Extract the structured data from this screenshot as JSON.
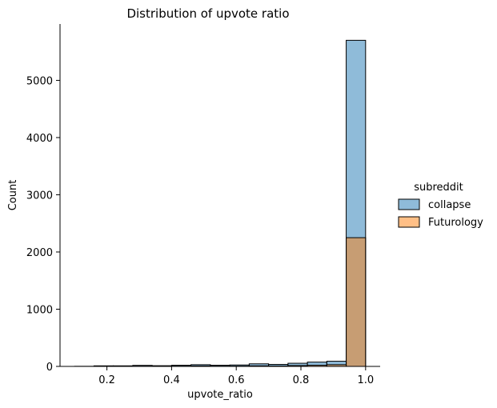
{
  "chart_data": {
    "type": "bar",
    "title": "Distribution of upvote ratio",
    "xlabel": "upvote_ratio",
    "ylabel": "Count",
    "xlim": [
      0.055,
      1.045
    ],
    "ylim": [
      0,
      5985
    ],
    "xticks": [
      0.2,
      0.4,
      0.6,
      0.8,
      1.0
    ],
    "xtick_labels": [
      "0.2",
      "0.4",
      "0.6",
      "0.8",
      "1.0"
    ],
    "yticks": [
      0,
      1000,
      2000,
      3000,
      4000,
      5000
    ],
    "ytick_labels": [
      "0",
      "1000",
      "2000",
      "3000",
      "4000",
      "5000"
    ],
    "bin_edges": [
      0.1,
      0.16,
      0.22,
      0.28,
      0.34,
      0.4,
      0.46,
      0.52,
      0.58,
      0.64,
      0.7,
      0.76,
      0.82,
      0.88,
      0.94,
      1.0
    ],
    "series": [
      {
        "name": "collapse",
        "color": "#1f77b4",
        "values": [
          2,
          10,
          10,
          18,
          12,
          20,
          30,
          20,
          25,
          45,
          35,
          55,
          75,
          90,
          5700
        ]
      },
      {
        "name": "Futurology",
        "color": "#ff7f0e",
        "values": [
          0,
          3,
          3,
          5,
          3,
          5,
          8,
          5,
          5,
          10,
          8,
          15,
          20,
          30,
          2250
        ]
      }
    ],
    "legend": {
      "title": "subreddit",
      "placement": "right"
    },
    "grid": false
  }
}
